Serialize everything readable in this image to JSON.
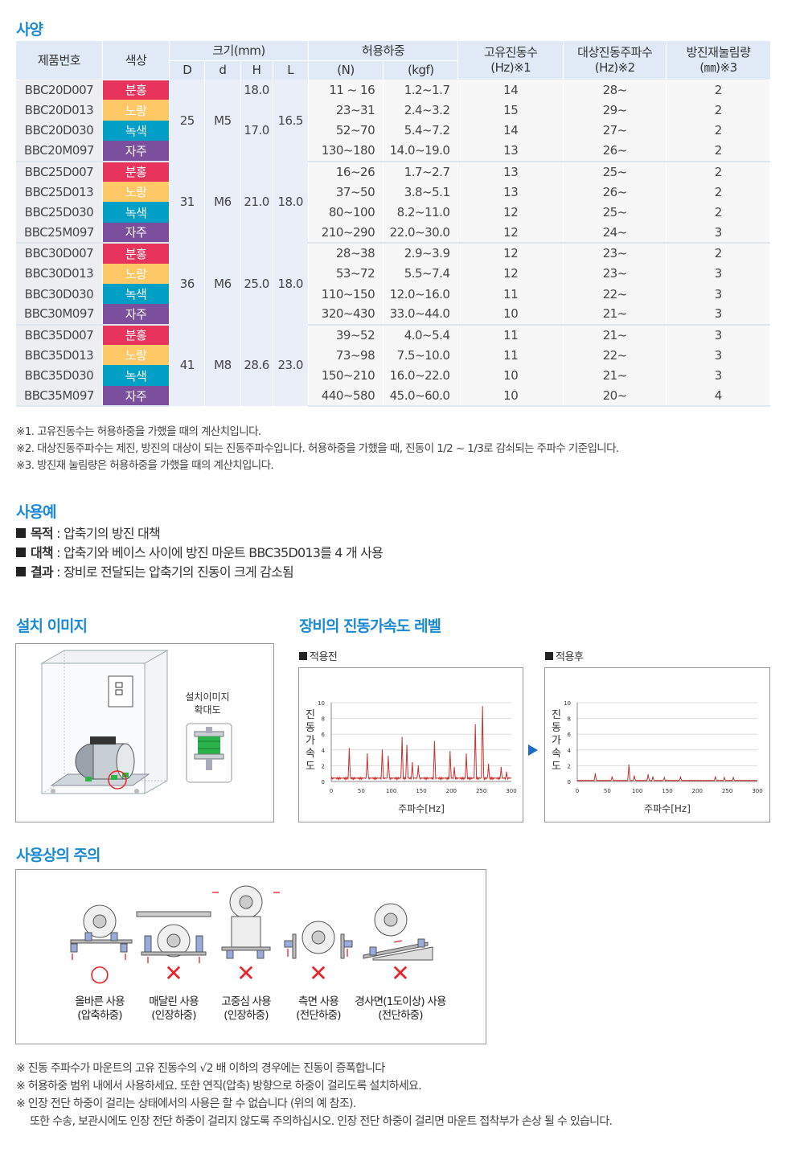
{
  "sections": {
    "spec": "사양",
    "usage": "사용예",
    "install": "설치 이미지",
    "vibration": "장비의 진동가속도 레벨",
    "caution": "사용상의 주의"
  },
  "table": {
    "headers": {
      "product": "제품번호",
      "color": "색상",
      "size": "크기(mm)",
      "D": "D",
      "d": "d",
      "H": "H",
      "L": "L",
      "load": "허용하중",
      "N": "(N)",
      "kgf": "(kgf)",
      "natfreq": "고유진동수",
      "natfreq_unit": "(Hz)※1",
      "target": "대상진동주파수",
      "target_unit": "(Hz)※2",
      "defl": "방진재눌림량",
      "defl_unit": "(㎜)※3"
    },
    "groups": [
      {
        "D": "25",
        "d": "M5",
        "L": "16.5",
        "H_top": "18.0",
        "H_rest": "17.0",
        "rows": [
          {
            "p": "BBC20D007",
            "c": "분홍",
            "n": "11 ~ 16",
            "k": "1.2~1.7",
            "f": "14",
            "t": "28~",
            "m": "2"
          },
          {
            "p": "BBC20D013",
            "c": "노랑",
            "n": "23~31",
            "k": "2.4~3.2",
            "f": "15",
            "t": "29~",
            "m": "2"
          },
          {
            "p": "BBC20D030",
            "c": "녹색",
            "n": "52~70",
            "k": "5.4~7.2",
            "f": "14",
            "t": "27~",
            "m": "2"
          },
          {
            "p": "BBC20M097",
            "c": "자주",
            "n": "130~180",
            "k": "14.0~19.0",
            "f": "13",
            "t": "26~",
            "m": "2"
          }
        ]
      },
      {
        "D": "31",
        "d": "M6",
        "H": "21.0",
        "L": "18.0",
        "rows": [
          {
            "p": "BBC25D007",
            "c": "분홍",
            "n": "16~26",
            "k": "1.7~2.7",
            "f": "13",
            "t": "25~",
            "m": "2"
          },
          {
            "p": "BBC25D013",
            "c": "노랑",
            "n": "37~50",
            "k": "3.8~5.1",
            "f": "13",
            "t": "26~",
            "m": "2"
          },
          {
            "p": "BBC25D030",
            "c": "녹색",
            "n": "80~100",
            "k": "8.2~11.0",
            "f": "12",
            "t": "25~",
            "m": "2"
          },
          {
            "p": "BBC25M097",
            "c": "자주",
            "n": "210~290",
            "k": "22.0~30.0",
            "f": "12",
            "t": "24~",
            "m": "3"
          }
        ]
      },
      {
        "D": "36",
        "d": "M6",
        "H": "25.0",
        "L": "18.0",
        "rows": [
          {
            "p": "BBC30D007",
            "c": "분홍",
            "n": "28~38",
            "k": "2.9~3.9",
            "f": "12",
            "t": "23~",
            "m": "2"
          },
          {
            "p": "BBC30D013",
            "c": "노랑",
            "n": "53~72",
            "k": "5.5~7.4",
            "f": "12",
            "t": "23~",
            "m": "3"
          },
          {
            "p": "BBC30D030",
            "c": "녹색",
            "n": "110~150",
            "k": "12.0~16.0",
            "f": "11",
            "t": "22~",
            "m": "3"
          },
          {
            "p": "BBC30M097",
            "c": "자주",
            "n": "320~430",
            "k": "33.0~44.0",
            "f": "10",
            "t": "21~",
            "m": "3"
          }
        ]
      },
      {
        "D": "41",
        "d": "M8",
        "H": "28.6",
        "L": "23.0",
        "rows": [
          {
            "p": "BBC35D007",
            "c": "분홍",
            "n": "39~52",
            "k": "4.0~5.4",
            "f": "11",
            "t": "21~",
            "m": "3"
          },
          {
            "p": "BBC35D013",
            "c": "노랑",
            "n": "73~98",
            "k": "7.5~10.0",
            "f": "11",
            "t": "22~",
            "m": "3"
          },
          {
            "p": "BBC35D030",
            "c": "녹색",
            "n": "150~210",
            "k": "16.0~22.0",
            "f": "10",
            "t": "21~",
            "m": "3"
          },
          {
            "p": "BBC35M097",
            "c": "자주",
            "n": "440~580",
            "k": "45.0~60.0",
            "f": "10",
            "t": "20~",
            "m": "4"
          }
        ]
      }
    ],
    "color_classes": {
      "분홍": "c-pink",
      "노랑": "c-yellow",
      "녹색": "c-teal",
      "자주": "c-purple"
    }
  },
  "notes": [
    "※1. 고유진동수는 허용하중을 가했을 때의 계산치입니다.",
    "※2. 대상진동주파수는 제진, 방진의 대상이 되는 진동주파수입니다. 허용하중을 가했을 때, 진동이 1/2 ~ 1/3로 감쇠되는 주파수 기준입니다.",
    "※3. 방진재 눌림량은 허용하중을 가했을 때의 계산치입니다."
  ],
  "usage": [
    {
      "label": "목적",
      "text": " : 압축기의 방진 대책"
    },
    {
      "label": "대책",
      "text": " : 압축기와 베이스 사이에 방진 마운트 BBC35D013를 4 개 사용"
    },
    {
      "label": "결과",
      "text": " : 장비로 전달되는 압축기의 진동이 크게 감소됨"
    }
  ],
  "install": {
    "panel_button_1": "",
    "zoom_label_1": "설치이미지",
    "zoom_label_2": "확대도"
  },
  "chart_labels": {
    "before": "적용전",
    "after": "적용후",
    "ylabel": [
      "진",
      "동",
      "가",
      "속",
      "도"
    ],
    "xlabel": "주파수[Hz]"
  },
  "chart_data": [
    {
      "type": "line",
      "title": "적용전",
      "xlabel": "주파수[Hz]",
      "ylabel": "진동가속도",
      "xlim": [
        0,
        300
      ],
      "ylim": [
        0,
        10
      ],
      "xticks": [
        "0",
        "50",
        "100",
        "150",
        "200",
        "250",
        "300"
      ],
      "yticks": [
        "0",
        "2",
        "4",
        "6",
        "8",
        "10"
      ],
      "peaks": [
        [
          30,
          4.2
        ],
        [
          60,
          3.5
        ],
        [
          85,
          4.0
        ],
        [
          95,
          3.2
        ],
        [
          118,
          5.6
        ],
        [
          126,
          4.6
        ],
        [
          135,
          2.4
        ],
        [
          145,
          2.0
        ],
        [
          172,
          5.1
        ],
        [
          198,
          3.8
        ],
        [
          205,
          1.8
        ],
        [
          225,
          3.5
        ],
        [
          240,
          7.2
        ],
        [
          252,
          9.5
        ],
        [
          262,
          2.2
        ],
        [
          283,
          1.8
        ],
        [
          292,
          1.2
        ]
      ]
    },
    {
      "type": "line",
      "title": "적용후",
      "xlabel": "주파수[Hz]",
      "ylabel": "진동가속도",
      "xlim": [
        0,
        300
      ],
      "ylim": [
        0,
        10
      ],
      "xticks": [
        "0",
        "50",
        "100",
        "150",
        "200",
        "250",
        "300"
      ],
      "yticks": [
        "0",
        "2",
        "4",
        "6",
        "8",
        "10"
      ],
      "peaks": [
        [
          30,
          1.0
        ],
        [
          58,
          0.6
        ],
        [
          86,
          2.1
        ],
        [
          95,
          0.7
        ],
        [
          118,
          0.9
        ],
        [
          126,
          0.6
        ],
        [
          145,
          0.5
        ],
        [
          172,
          0.6
        ],
        [
          230,
          0.6
        ],
        [
          245,
          0.5
        ],
        [
          260,
          0.5
        ]
      ]
    }
  ],
  "caution": {
    "items": [
      {
        "mark": "○",
        "line1": "올바른 사용",
        "line2": "(압축하중)",
        "ok": true
      },
      {
        "mark": "✕",
        "line1": "매달린 사용",
        "line2": "(인장하중)",
        "ok": false
      },
      {
        "mark": "✕",
        "line1": "고중심 사용",
        "line2": "(인장하중)",
        "ok": false
      },
      {
        "mark": "✕",
        "line1": "측면 사용",
        "line2": "(전단하중)",
        "ok": false
      },
      {
        "mark": "✕",
        "line1": "경사면(1도이상) 사용",
        "line2": "(전단하중)",
        "ok": false
      }
    ],
    "ok_color": "#e8232a",
    "ng_color": "#e8232a"
  },
  "bottom_notes": [
    "※ 진동 주파수가 마운트의 고유 진동수의 √2 배 이하의 경우에는 진동이 증폭합니다",
    "※ 허용하중 범위 내에서 사용하세요. 또한 연직(압축) 방향으로 하중이 걸리도록 설치하세요.",
    "※ 인장 전단 하중이 걸리는 상태에서의 사용은 할 수 없습니다 (위의 예 참조).",
    "또한 수송, 보관시에도 인장 전단 하중이 걸리지 않도록 주의하십시오. 인장 전단 하중이 걸리면 마운트 접착부가 손상 될 수 있습니다."
  ]
}
